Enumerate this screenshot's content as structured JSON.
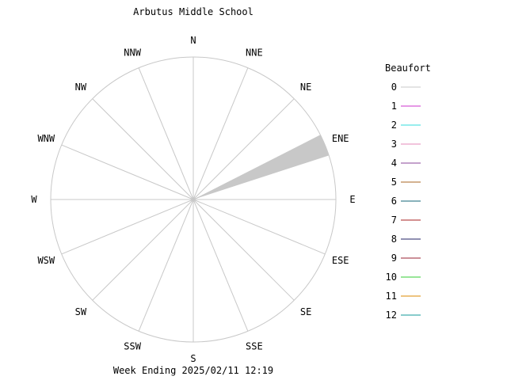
{
  "chart_data": {
    "type": "wind-rose",
    "title": "Arbutus Middle School",
    "footer": "Week Ending 2025/02/11 12:19",
    "directions": [
      "N",
      "NNE",
      "NE",
      "ENE",
      "E",
      "ESE",
      "SE",
      "SSE",
      "S",
      "SSW",
      "SW",
      "WSW",
      "W",
      "WNW",
      "NW",
      "NNW"
    ],
    "max_value": 1.0,
    "petals": [
      {
        "direction": "ENE",
        "value": 1.0,
        "color": "#c8c8c8"
      }
    ],
    "legend": {
      "title": "Beaufort",
      "items": [
        {
          "label": "0",
          "color": "#c8c8c8"
        },
        {
          "label": "1",
          "color": "#cc33cc"
        },
        {
          "label": "2",
          "color": "#33dddd"
        },
        {
          "label": "3",
          "color": "#e68ab8"
        },
        {
          "label": "4",
          "color": "#884499"
        },
        {
          "label": "5",
          "color": "#aa6622"
        },
        {
          "label": "6",
          "color": "#116677"
        },
        {
          "label": "7",
          "color": "#aa2222"
        },
        {
          "label": "8",
          "color": "#222266"
        },
        {
          "label": "9",
          "color": "#992233"
        },
        {
          "label": "10",
          "color": "#33cc33"
        },
        {
          "label": "11",
          "color": "#dd8800"
        },
        {
          "label": "12",
          "color": "#119999"
        }
      ]
    }
  }
}
